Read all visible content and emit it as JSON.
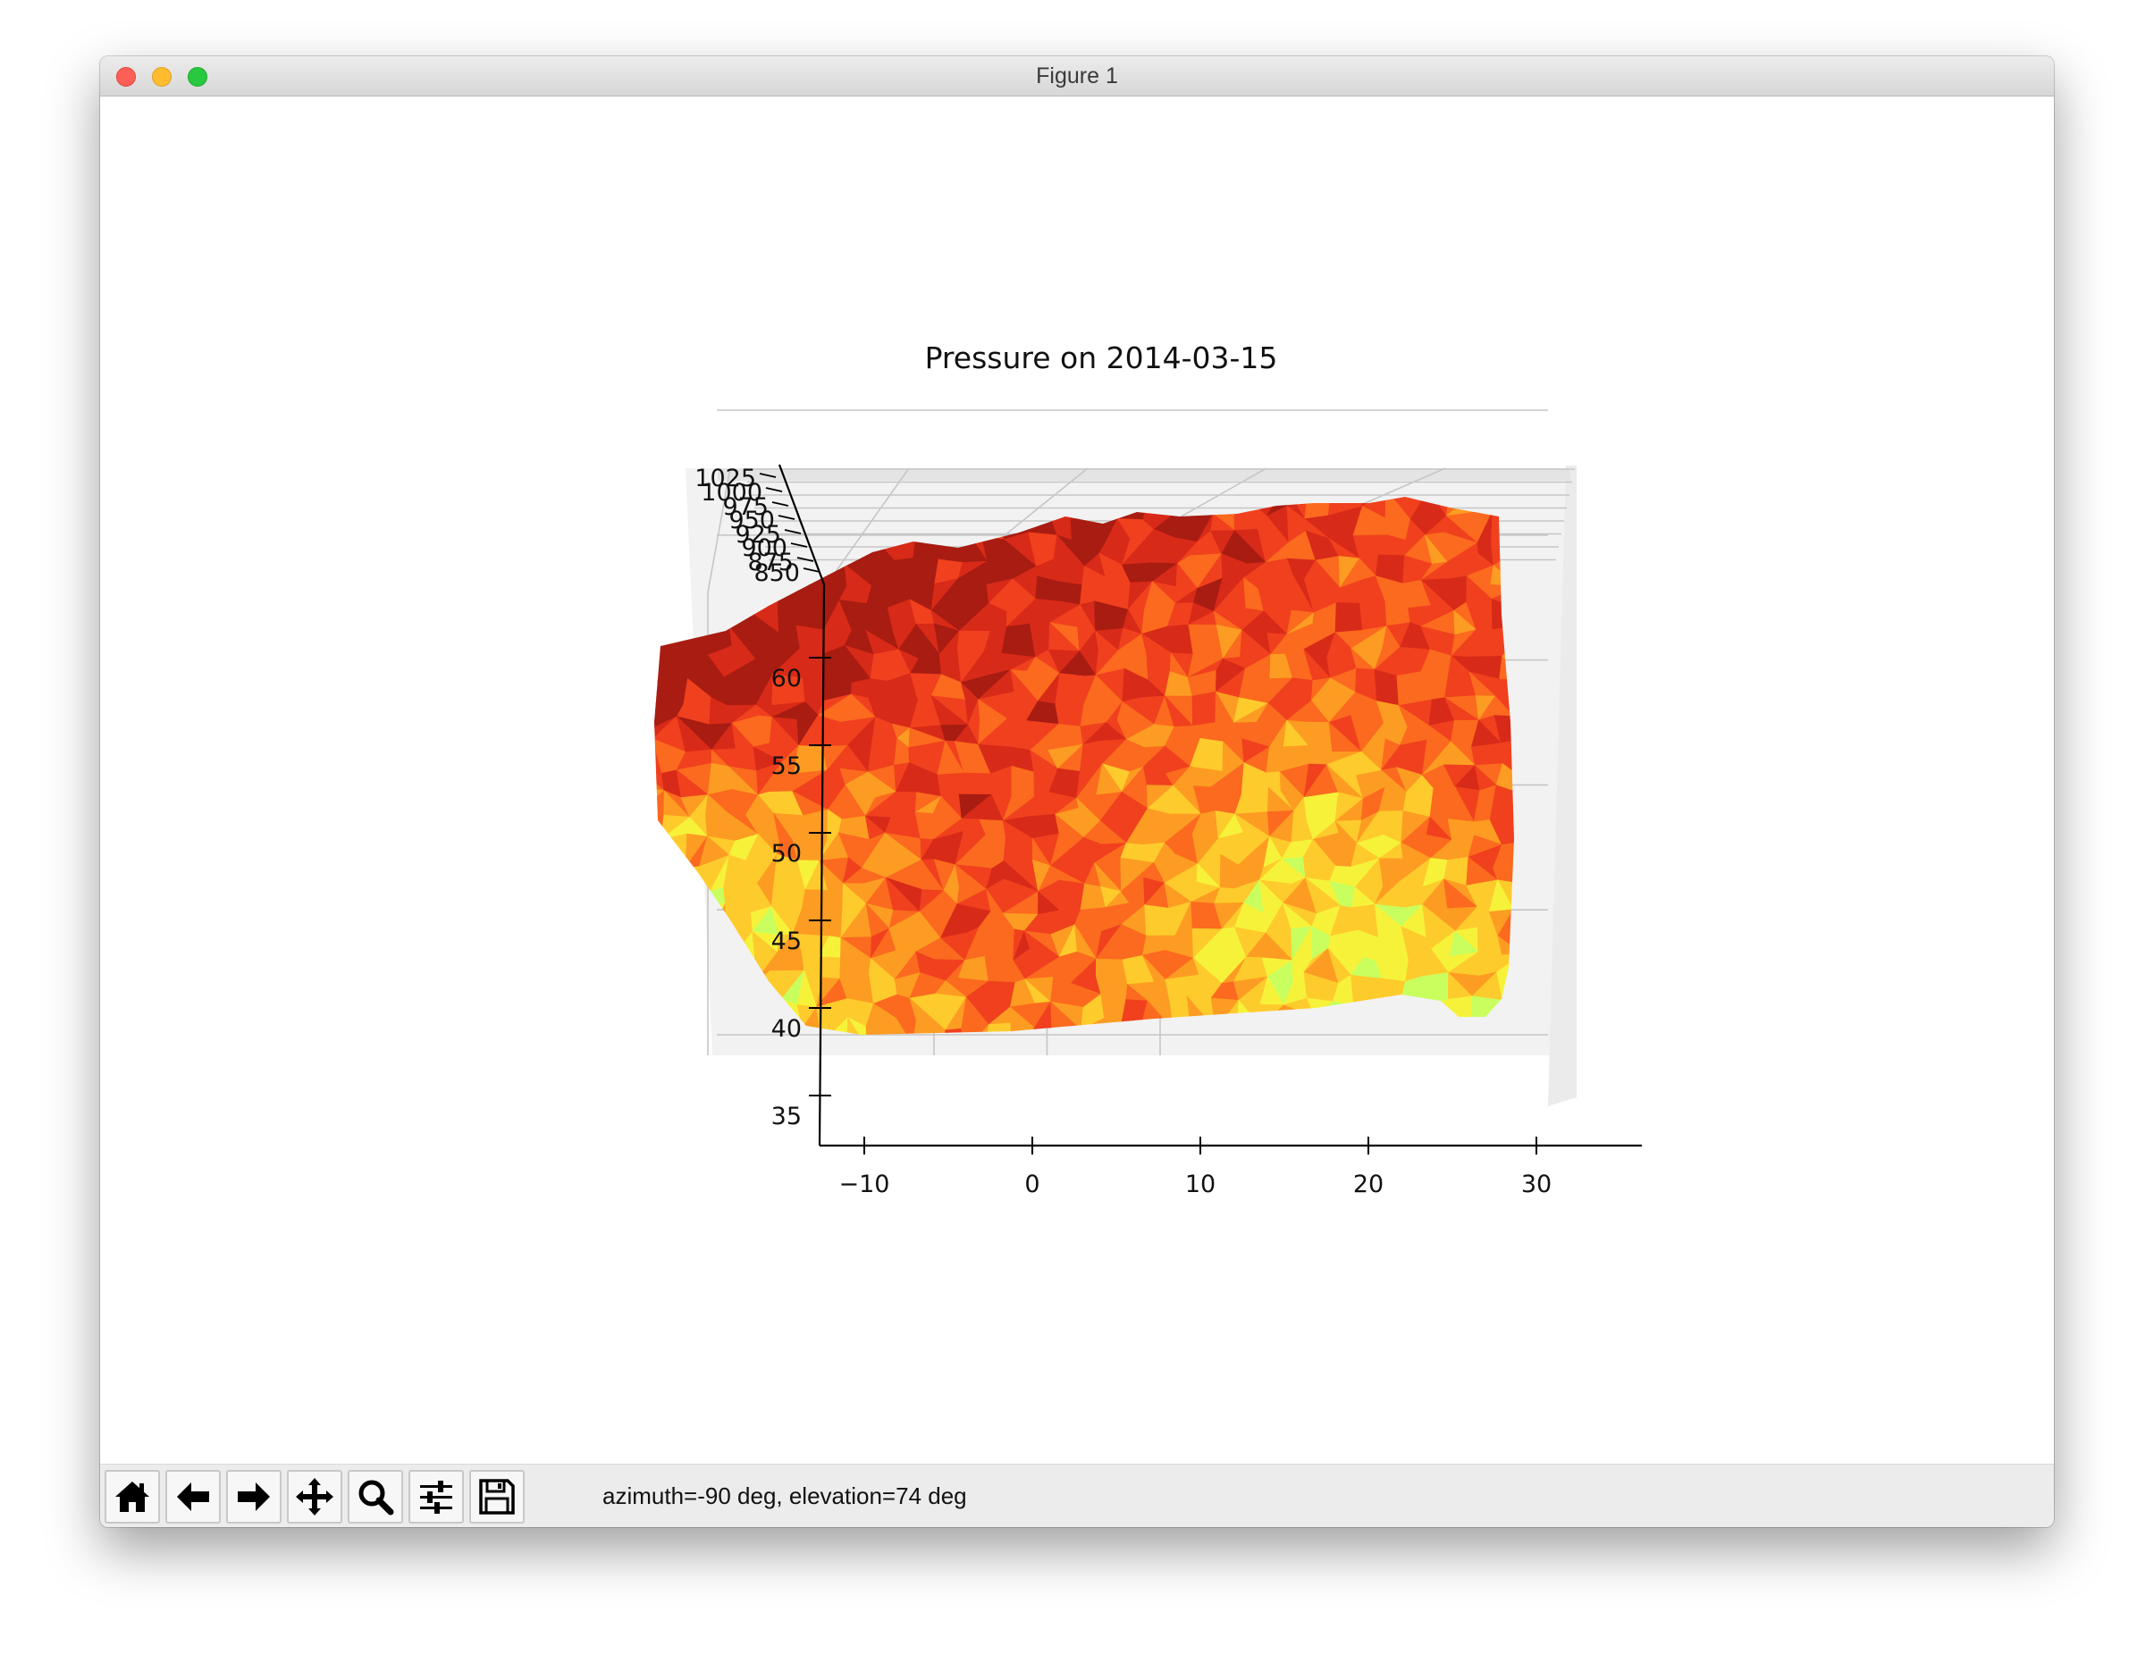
{
  "window": {
    "title": "Figure 1",
    "controls": [
      "close",
      "minimize",
      "maximize"
    ]
  },
  "toolbar": {
    "buttons": [
      {
        "name": "home",
        "icon": "home-icon"
      },
      {
        "name": "back",
        "icon": "arrow-left-icon"
      },
      {
        "name": "forward",
        "icon": "arrow-right-icon"
      },
      {
        "name": "pan",
        "icon": "move-icon"
      },
      {
        "name": "zoom",
        "icon": "magnifier-icon"
      },
      {
        "name": "configure-subplots",
        "icon": "sliders-icon"
      },
      {
        "name": "save",
        "icon": "floppy-disk-icon"
      }
    ],
    "status": "azimuth=-90 deg, elevation=74 deg"
  },
  "chart_data": {
    "type": "surface3d",
    "title": "Pressure on 2014-03-15",
    "xlabel": "",
    "ylabel": "",
    "zlabel": "",
    "x_ticks": [
      "−10",
      "0",
      "10",
      "20",
      "30"
    ],
    "y_ticks": [
      "35",
      "40",
      "45",
      "50",
      "55",
      "60"
    ],
    "z_ticks": [
      "850",
      "875",
      "900",
      "925",
      "950",
      "975",
      "1000",
      "1025"
    ],
    "xlim": [
      -13,
      36
    ],
    "ylim": [
      32,
      66
    ],
    "zlim": [
      850,
      1025
    ],
    "view": {
      "azimuth": -90,
      "elevation": 74
    },
    "colormap": "jet",
    "colors": [
      "#a81c12",
      "#d82a18",
      "#f0401e",
      "#fb6a1e",
      "#fd9c22",
      "#fecb2c",
      "#f6f23a",
      "#c8ff5e",
      "#8affa0",
      "#4ef7e6"
    ],
    "grid": true,
    "pane_color": "#f2f2f2",
    "grid_color": "#c6c6c6"
  }
}
